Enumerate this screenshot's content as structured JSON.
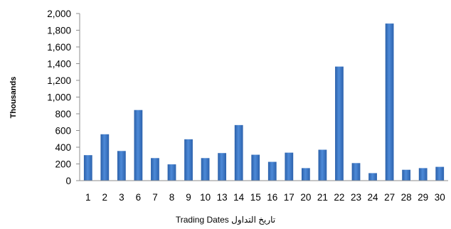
{
  "chart_data": {
    "type": "bar",
    "title": "",
    "ylabel": "Thousands",
    "xlabel": "Trading Dates تاريخ التداول",
    "ylim": [
      0,
      2000
    ],
    "ytick_step": 200,
    "ytick_labels": [
      "0",
      "200",
      "400",
      "600",
      "800",
      "1,000",
      "1,200",
      "1,400",
      "1,600",
      "1,800",
      "2,000"
    ],
    "grid": false,
    "legend": "none",
    "bar_color": "#3a78c8",
    "categories": [
      "1",
      "2",
      "3",
      "6",
      "7",
      "8",
      "9",
      "10",
      "13",
      "14",
      "15",
      "16",
      "17",
      "20",
      "21",
      "22",
      "23",
      "24",
      "27",
      "28",
      "29",
      "30"
    ],
    "values": [
      305,
      555,
      355,
      845,
      270,
      195,
      495,
      270,
      330,
      665,
      310,
      225,
      335,
      150,
      370,
      1365,
      210,
      90,
      1880,
      130,
      150,
      165
    ]
  }
}
